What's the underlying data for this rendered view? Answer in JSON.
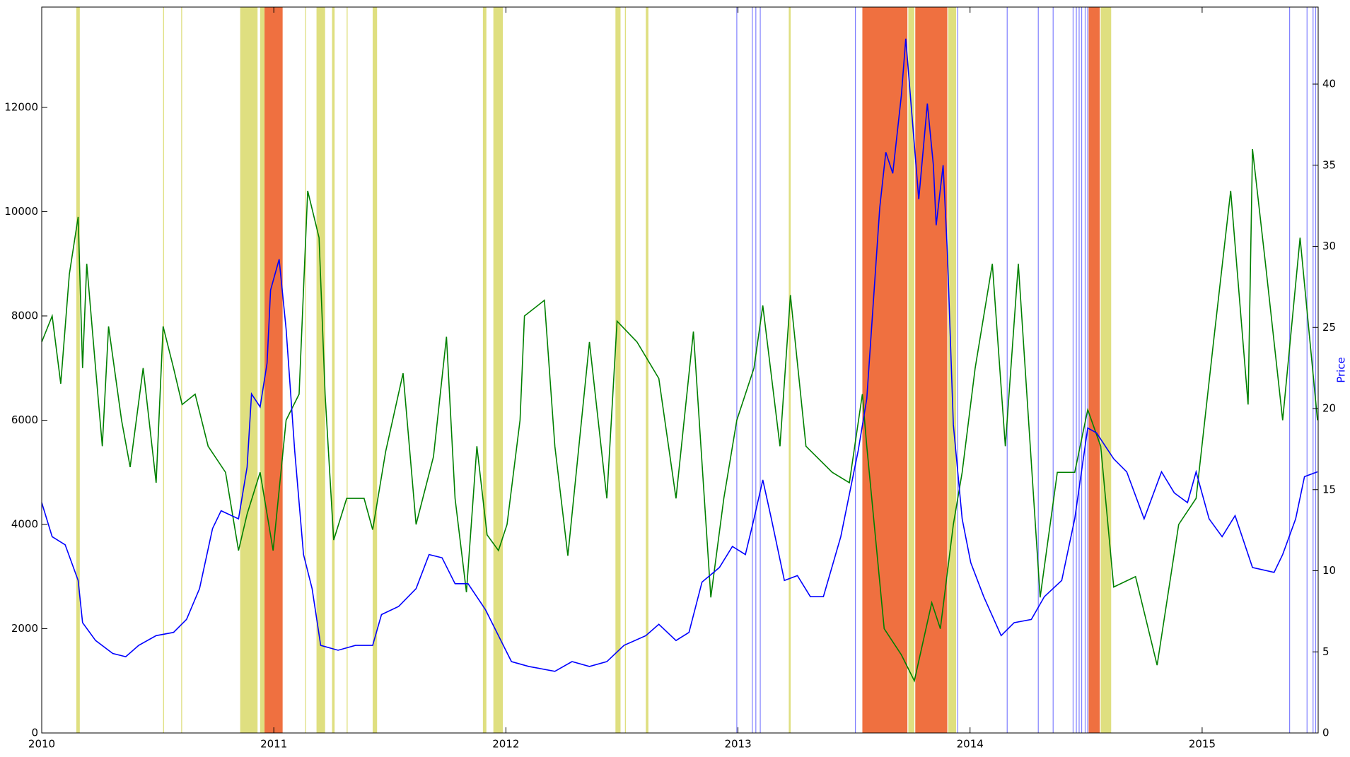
{
  "chart_data": {
    "type": "line",
    "y2label": "Price",
    "xlim": [
      2010,
      2015.5
    ],
    "xticks": [
      2010,
      2011,
      2012,
      2013,
      2014,
      2015
    ],
    "ylim": [
      0,
      13925
    ],
    "yticks": [
      0,
      2000,
      4000,
      6000,
      8000,
      10000,
      12000
    ],
    "y2lim": [
      0,
      44.75
    ],
    "y2ticks": [
      0,
      5,
      10,
      15,
      20,
      25,
      30,
      35,
      40
    ],
    "y2label_color": "#0000ff",
    "spans": [
      {
        "x0": 2010.149,
        "x1": 2010.164,
        "color": "#dfdf80"
      },
      {
        "x0": 2010.523,
        "x1": 2010.527,
        "color": "#dfdf80"
      },
      {
        "x0": 2010.601,
        "x1": 2010.605,
        "color": "#dfdf80"
      },
      {
        "x0": 2010.855,
        "x1": 2010.93,
        "color": "#dfdf80"
      },
      {
        "x0": 2010.941,
        "x1": 2010.96,
        "color": "#dfdf80"
      },
      {
        "x0": 2010.96,
        "x1": 2011.038,
        "color": "#ef7040"
      },
      {
        "x0": 2011.135,
        "x1": 2011.139,
        "color": "#dfdf80"
      },
      {
        "x0": 2011.184,
        "x1": 2011.221,
        "color": "#dfdf80"
      },
      {
        "x0": 2011.251,
        "x1": 2011.262,
        "color": "#dfdf80"
      },
      {
        "x0": 2011.314,
        "x1": 2011.318,
        "color": "#dfdf80"
      },
      {
        "x0": 2011.426,
        "x1": 2011.445,
        "color": "#dfdf80"
      },
      {
        "x0": 2011.901,
        "x1": 2011.916,
        "color": "#dfdf80"
      },
      {
        "x0": 2011.946,
        "x1": 2011.987,
        "color": "#dfdf80"
      },
      {
        "x0": 2012.472,
        "x1": 2012.494,
        "color": "#dfdf80"
      },
      {
        "x0": 2012.513,
        "x1": 2012.517,
        "color": "#dfdf80"
      },
      {
        "x0": 2012.603,
        "x1": 2012.614,
        "color": "#dfdf80"
      },
      {
        "x0": 2013.219,
        "x1": 2013.227,
        "color": "#dfdf80"
      },
      {
        "x0": 2013.536,
        "x1": 2013.73,
        "color": "#ef7040"
      },
      {
        "x0": 2013.734,
        "x1": 2013.76,
        "color": "#dfdf80"
      },
      {
        "x0": 2013.764,
        "x1": 2013.902,
        "color": "#ef7040"
      },
      {
        "x0": 2013.906,
        "x1": 2013.94,
        "color": "#dfdf80"
      },
      {
        "x0": 2014.511,
        "x1": 2014.559,
        "color": "#ef7040"
      },
      {
        "x0": 2014.563,
        "x1": 2014.608,
        "color": "#dfdf80"
      }
    ],
    "vlines": {
      "color": "#8080ff",
      "x": [
        2012.995,
        2013.062,
        2013.077,
        2013.096,
        2013.506,
        2013.947,
        2014.16,
        2014.294,
        2014.358,
        2014.444,
        2014.458,
        2014.47,
        2014.481,
        2014.496,
        2014.507,
        2015.377,
        2015.452,
        2015.478,
        2015.489
      ]
    },
    "series": [
      {
        "color": "#008000",
        "x": [
          2010.0,
          2010.045,
          2010.082,
          2010.119,
          2010.157,
          2010.176,
          2010.194,
          2010.232,
          2010.261,
          2010.288,
          2010.344,
          2010.381,
          2010.437,
          2010.493,
          2010.523,
          2010.568,
          2010.605,
          2010.661,
          2010.717,
          2010.792,
          2010.848,
          2010.885,
          2010.941,
          2010.997,
          2011.053,
          2011.109,
          2011.146,
          2011.195,
          2011.221,
          2011.258,
          2011.314,
          2011.389,
          2011.426,
          2011.482,
          2011.557,
          2011.613,
          2011.688,
          2011.744,
          2011.781,
          2011.83,
          2011.875,
          2011.919,
          2011.968,
          2012.005,
          2012.061,
          2012.08,
          2012.166,
          2012.211,
          2012.267,
          2012.36,
          2012.435,
          2012.479,
          2012.565,
          2012.659,
          2012.733,
          2012.808,
          2012.883,
          2012.939,
          2012.995,
          2013.069,
          2013.107,
          2013.181,
          2013.226,
          2013.293,
          2013.406,
          2013.48,
          2013.536,
          2013.555,
          2013.63,
          2013.704,
          2013.76,
          2013.835,
          2013.872,
          2013.928,
          2013.966,
          2014.022,
          2014.096,
          2014.152,
          2014.208,
          2014.302,
          2014.376,
          2014.451,
          2014.507,
          2014.563,
          2014.619,
          2014.713,
          2014.806,
          2014.899,
          2014.974,
          2015.049,
          2015.123,
          2015.198,
          2015.217,
          2015.273,
          2015.347,
          2015.422,
          2015.497
        ],
        "values": [
          7500,
          8000,
          6700,
          8800,
          9900,
          7000,
          9000,
          7000,
          5500,
          7800,
          6000,
          5100,
          7000,
          4800,
          7800,
          7000,
          6300,
          6500,
          5500,
          5000,
          3500,
          4200,
          5000,
          3500,
          6000,
          6500,
          10400,
          9500,
          6500,
          3700,
          4500,
          4500,
          3900,
          5400,
          6900,
          4000,
          5300,
          7600,
          4500,
          2700,
          5500,
          3800,
          3500,
          4000,
          6000,
          8000,
          8300,
          5500,
          3400,
          7500,
          4500,
          7900,
          7500,
          6800,
          4500,
          7700,
          2600,
          4500,
          6000,
          7000,
          8200,
          5500,
          8400,
          5500,
          5000,
          4800,
          6500,
          5500,
          2000,
          1500,
          1000,
          2500,
          2000,
          4000,
          5000,
          7000,
          9000,
          5500,
          9000,
          2600,
          5000,
          5000,
          6200,
          5500,
          2800,
          3000,
          1300,
          4000,
          4500,
          7500,
          10400,
          6300,
          11200,
          9000,
          6000,
          9500,
          6000
        ]
      },
      {
        "color": "#0000ff",
        "axis": "y2",
        "x": [
          2010.0,
          2010.045,
          2010.101,
          2010.157,
          2010.176,
          2010.232,
          2010.306,
          2010.362,
          2010.418,
          2010.493,
          2010.568,
          2010.624,
          2010.68,
          2010.736,
          2010.773,
          2010.848,
          2010.885,
          2010.904,
          2010.941,
          2010.971,
          2010.986,
          2011.023,
          2011.053,
          2011.09,
          2011.128,
          2011.165,
          2011.202,
          2011.277,
          2011.352,
          2011.426,
          2011.464,
          2011.538,
          2011.613,
          2011.669,
          2011.725,
          2011.781,
          2011.837,
          2011.912,
          2011.968,
          2012.024,
          2012.099,
          2012.211,
          2012.285,
          2012.36,
          2012.435,
          2012.509,
          2012.603,
          2012.659,
          2012.733,
          2012.789,
          2012.845,
          2012.92,
          2012.976,
          2013.032,
          2013.069,
          2013.107,
          2013.144,
          2013.2,
          2013.256,
          2013.312,
          2013.368,
          2013.443,
          2013.518,
          2013.555,
          2013.611,
          2013.637,
          2013.667,
          2013.704,
          2013.723,
          2013.749,
          2013.779,
          2013.816,
          2013.842,
          2013.854,
          2013.884,
          2013.902,
          2013.928,
          2013.966,
          2014.003,
          2014.059,
          2014.134,
          2014.19,
          2014.264,
          2014.32,
          2014.395,
          2014.451,
          2014.507,
          2014.545,
          2014.619,
          2014.675,
          2014.75,
          2014.825,
          2014.88,
          2014.937,
          2014.974,
          2015.03,
          2015.086,
          2015.142,
          2015.217,
          2015.31,
          2015.347,
          2015.403,
          2015.441,
          2015.497
        ],
        "values": [
          14.2,
          12.1,
          11.6,
          9.4,
          6.8,
          5.7,
          4.9,
          4.7,
          5.4,
          6.0,
          6.2,
          7.0,
          8.9,
          12.6,
          13.7,
          13.2,
          16.4,
          20.9,
          20.1,
          22.8,
          27.3,
          29.2,
          24.9,
          17.4,
          11.0,
          8.9,
          5.4,
          5.1,
          5.4,
          5.4,
          7.3,
          7.8,
          8.9,
          11.0,
          10.8,
          9.2,
          9.2,
          7.6,
          6.0,
          4.4,
          4.1,
          3.8,
          4.4,
          4.1,
          4.4,
          5.4,
          6.0,
          6.7,
          5.7,
          6.2,
          9.3,
          10.2,
          11.5,
          11.0,
          13.2,
          15.6,
          13.2,
          9.4,
          9.7,
          8.4,
          8.4,
          12.1,
          17.4,
          20.6,
          32.4,
          35.8,
          34.5,
          39.3,
          42.8,
          38.2,
          32.9,
          38.8,
          35.0,
          31.3,
          35.0,
          29.7,
          19.0,
          13.2,
          10.5,
          8.4,
          6.0,
          6.8,
          7.0,
          8.4,
          9.4,
          13.2,
          18.8,
          18.5,
          16.9,
          16.1,
          13.2,
          16.1,
          14.8,
          14.2,
          16.1,
          13.2,
          12.1,
          13.4,
          10.2,
          9.9,
          11.0,
          13.2,
          15.8,
          16.1
        ]
      }
    ]
  }
}
